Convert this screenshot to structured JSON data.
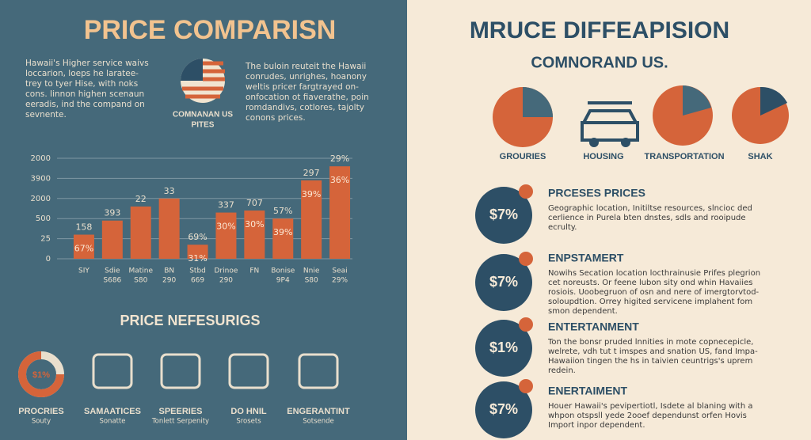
{
  "chart_data": {
    "type": "bar",
    "color": "#d5643a",
    "yticks": [
      {
        "value": 0,
        "label": "0"
      },
      {
        "value": 1,
        "label": "25"
      },
      {
        "value": 2,
        "label": "500"
      },
      {
        "value": 3,
        "label": "2000"
      },
      {
        "value": 4,
        "label": "3900"
      },
      {
        "value": 5,
        "label": "2000"
      }
    ],
    "ylim": [
      0,
      5
    ],
    "grid": true,
    "values": [
      1.2,
      1.9,
      2.6,
      3.0,
      0.7,
      2.3,
      2.4,
      2.0,
      3.9,
      4.6
    ],
    "value_labels": [
      "158",
      "393",
      "22",
      "33",
      "69%",
      "337",
      "707",
      "57%",
      "297",
      "29%"
    ],
    "inner_labels": [
      "67%",
      null,
      null,
      null,
      "31%",
      "30%",
      "30%",
      "39%",
      "39%",
      "36%"
    ],
    "categories": [
      [
        "SIY"
      ],
      [
        "Sdie",
        "S686"
      ],
      [
        "Matine",
        "S80"
      ],
      [
        "BN",
        "290"
      ],
      [
        "Stbd",
        "669"
      ],
      [
        "Drinoe",
        "290"
      ],
      [
        "FN"
      ],
      [
        "Bonise",
        "9P4"
      ],
      [
        "Nnie",
        "S80"
      ],
      [
        "Seai",
        "29%"
      ]
    ]
  },
  "left": {
    "title": "PRICE COMPARISN",
    "intro_left": [
      "Hawaii's Higher service waivs",
      "loccarion, loeps he laratee-",
      "trey to tyer Hise, with noks",
      "cons. Iinnon highen scenaun",
      "eeradis, ind the compand on",
      "sevnente."
    ],
    "flag_caption": [
      "COMNANAN US",
      "PITES"
    ],
    "intro_right": [
      "The buloin reuteit the Hawaii",
      "conrudes, unrighes, hoanony",
      "weltis pricer fargtrayed on-",
      "onfocation ot fiaverathe, poin",
      "romdandivs, cotlores, tajolty",
      "conons prices."
    ],
    "section_title": "PRICE NEFESURIGS",
    "donut_label": "$1%",
    "icons": [
      [
        "PROCRIES",
        "Souty"
      ],
      [
        "SAMAATICES",
        "Sonatte"
      ],
      [
        "SPEERIES",
        "Tonlett Serpenity"
      ],
      [
        "DO HNIL",
        "Srosets"
      ],
      [
        "ENGERANTINT",
        "Sotsende"
      ]
    ]
  },
  "right": {
    "title": "MRUCE DIFFEAPISION",
    "subtitle": "COMNORAND US.",
    "icons": [
      "GROURIES",
      "HOUSING",
      "TRANSPORTATION",
      "SHAK"
    ],
    "rows": [
      {
        "badge": "$7%",
        "heading": "PRCESES PRICES",
        "lines": [
          "Geographic location, Initiltse resources, slncioc ded",
          "cerlience in Purela bten dnstes, sdls and rooipude",
          "ecrulty."
        ]
      },
      {
        "badge": "$7%",
        "heading": "ENPSTAMERT",
        "lines": [
          "Nowihs Secation location locthrainusie Prifes plegrion",
          "cet noreusts. Or feene lubon sity ond whin Havaiies",
          "rosiois. Uoobegruon of osn and nere of imergtorvtod-",
          "soloupdtion. Orrey higited servicene implahent fom",
          "smon dependent."
        ]
      },
      {
        "badge": "$1%",
        "heading": "ENTERTANMENT",
        "lines": [
          "Ton the bonsr pruded lnnities in mote copnecepicle,",
          "welrete, vdh tut t imspes and snation US, fand Impa-",
          "Hawaiion tingen the hs in taivien ceuntrigs's uprem",
          "redein."
        ]
      },
      {
        "badge": "$7%",
        "heading": "ENERTAIMENT",
        "lines": [
          "Houer Hawaii's pevipertiotl, Isdete al blaning with a",
          "whpon otspsll yede 2ooef dependunst orfen Hovis",
          "Import inpor dependent."
        ]
      }
    ]
  }
}
